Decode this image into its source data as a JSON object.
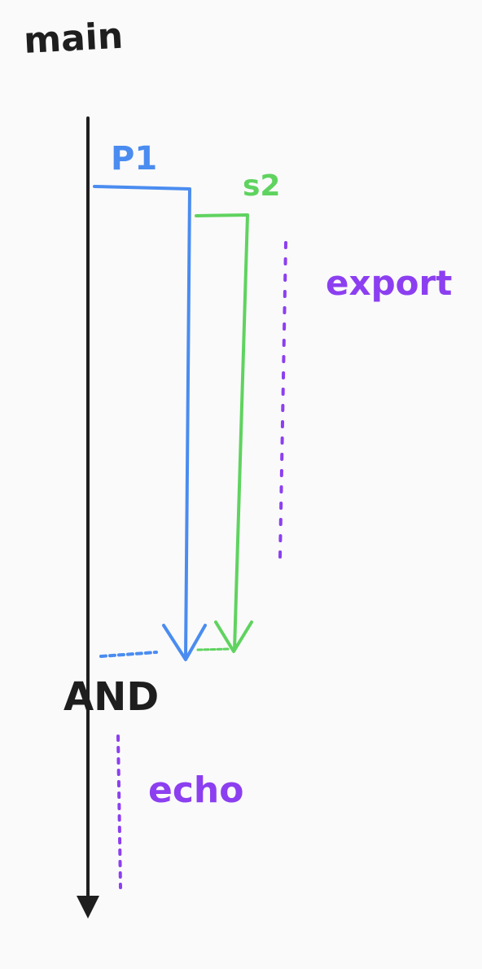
{
  "labels": {
    "main": "main",
    "p1": "P1",
    "s2": "s2",
    "export": "export",
    "and": "AND",
    "echo": "echo"
  },
  "colors": {
    "background": "#fafafa",
    "main_line": "#1e1e1e",
    "p1": "#4a8cf0",
    "s2": "#5fd35f",
    "command": "#8c3ff0"
  }
}
